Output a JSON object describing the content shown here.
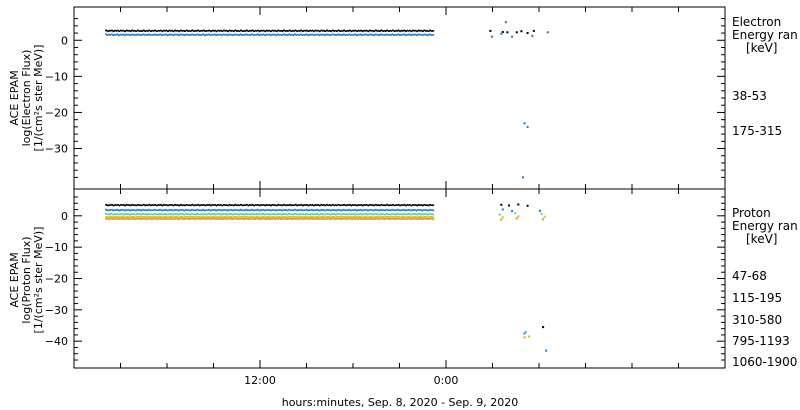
{
  "chart_data": [
    {
      "type": "scatter",
      "panel": "electron",
      "ylabel": [
        "ACE EPAM",
        "log(Electron Flux)",
        "[1/(cm²s ster MeV)]"
      ],
      "ylim": [
        -39,
        7
      ],
      "yticks": [
        0,
        -10,
        -20,
        -30
      ],
      "legend_title": [
        "Electron",
        "Energy ran",
        "[keV]"
      ],
      "legend_placement": "right",
      "series": [
        {
          "name": "38-53",
          "color": "#000000",
          "baseline": 2.6,
          "gap_points": [
            [
              26.8,
              2.6
            ],
            [
              27.6,
              2.3
            ],
            [
              27.9,
              2.2
            ],
            [
              28.5,
              2.2
            ],
            [
              28.8,
              2.5
            ],
            [
              29.2,
              2.0
            ],
            [
              29.6,
              2.6
            ]
          ]
        },
        {
          "name": "175-315",
          "color": "#1e78c8",
          "baseline": 1.5,
          "gap_points": [
            [
              26.9,
              1.0
            ],
            [
              27.5,
              1.8
            ],
            [
              27.8,
              5.0
            ],
            [
              28.2,
              1.0
            ],
            [
              29.0,
              -23.0
            ],
            [
              29.2,
              -24.0
            ],
            [
              29.5,
              1.2
            ],
            [
              30.5,
              2.2
            ],
            [
              28.9,
              -38.0
            ]
          ]
        }
      ]
    },
    {
      "type": "scatter",
      "panel": "proton",
      "ylabel": [
        "ACE EPAM",
        "log(Proton Flux)",
        "[1/(cm²s ster MeV)]"
      ],
      "ylim": [
        -46,
        6
      ],
      "yticks": [
        0,
        -10,
        -20,
        -30,
        -40
      ],
      "legend_title": [
        "Proton",
        "Energy ran",
        "[keV]"
      ],
      "legend_placement": "right",
      "series": [
        {
          "name": "47-68",
          "color": "#000000",
          "baseline": 3.4,
          "gap_points": [
            [
              27.5,
              3.5
            ],
            [
              28.0,
              3.3
            ],
            [
              28.6,
              3.6
            ],
            [
              29.2,
              3.2
            ],
            [
              30.2,
              -35.5
            ]
          ]
        },
        {
          "name": "115-195",
          "color": "#1e78c8",
          "baseline": 1.8,
          "gap_points": [
            [
              27.6,
              2.0
            ],
            [
              28.2,
              1.5
            ],
            [
              29.0,
              -37.5
            ],
            [
              30.0,
              1.6
            ],
            [
              30.4,
              -43.0
            ]
          ]
        },
        {
          "name": "310-580",
          "color": "#3cd2dc",
          "baseline": 0.5,
          "gap_points": [
            [
              27.4,
              0.4
            ],
            [
              28.4,
              0.8
            ],
            [
              29.1,
              -37.0
            ],
            [
              30.1,
              0.6
            ]
          ]
        },
        {
          "name": "795-1193",
          "color": "#c8c800",
          "baseline": -0.4,
          "gap_points": [
            [
              27.6,
              -0.5
            ],
            [
              28.6,
              -0.2
            ],
            [
              29.3,
              -38.5
            ],
            [
              30.3,
              -0.3
            ]
          ]
        },
        {
          "name": "1060-1900",
          "color": "#f09614",
          "baseline": -1.0,
          "gap_points": [
            [
              27.5,
              -1.2
            ],
            [
              28.5,
              -0.8
            ],
            [
              29.0,
              -38.8
            ],
            [
              30.2,
              -1.1
            ]
          ]
        }
      ]
    }
  ],
  "time_axis": {
    "start_hour": 0,
    "end_hour": 42,
    "major_ticks": [
      {
        "hour": 12,
        "label": "12:00"
      },
      {
        "hour": 24,
        "label": "0:00"
      }
    ],
    "minor_tick_hours": [
      0,
      3,
      6,
      9,
      15,
      18,
      21,
      27,
      30,
      33,
      36,
      39,
      42
    ],
    "data_start_hour": 2,
    "data_end_hour": 23.2,
    "title": "hours:minutes, Sep.  8, 2020 - Sep.  9, 2020"
  }
}
